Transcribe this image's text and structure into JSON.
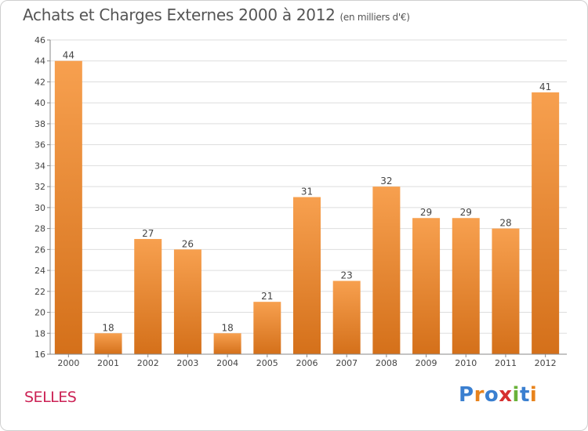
{
  "chart_data": {
    "type": "bar",
    "title": "Achats et Charges Externes 2000 à 2012",
    "unit": "(en milliers d'€)",
    "categories": [
      "2000",
      "2001",
      "2002",
      "2003",
      "2004",
      "2005",
      "2006",
      "2007",
      "2008",
      "2009",
      "2010",
      "2011",
      "2012"
    ],
    "values": [
      44,
      18,
      27,
      26,
      18,
      21,
      31,
      23,
      32,
      29,
      29,
      28,
      41
    ],
    "ylim": [
      16,
      46
    ],
    "yticks": [
      16,
      18,
      20,
      22,
      24,
      26,
      28,
      30,
      32,
      34,
      36,
      38,
      40,
      42,
      44,
      46
    ],
    "grid": true,
    "bar_color_top": "#f7a04f",
    "bar_color_bottom": "#d4701a"
  },
  "commune": "SELLES",
  "logo": {
    "text": "Proxiti",
    "letter_colors": [
      "#3a7fd0",
      "#e8831c",
      "#3a7fd0",
      "#d62f2f",
      "#6ab23a",
      "#3a7fd0",
      "#e8831c"
    ]
  }
}
